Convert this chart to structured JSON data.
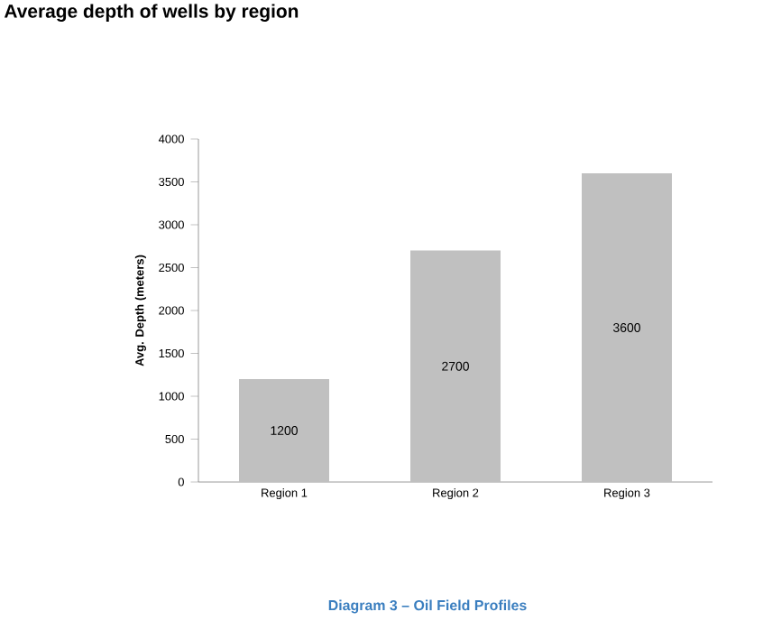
{
  "chart_data": {
    "type": "bar",
    "title": "Average depth of wells by region",
    "ylabel": "Avg. Depth (meters)",
    "categories": [
      "Region 1",
      "Region 2",
      "Region 3"
    ],
    "values": [
      1200,
      2700,
      3600
    ],
    "color": "#c0c0c0",
    "ylim": [
      0,
      4000
    ],
    "yticks": [
      0,
      500,
      1000,
      1500,
      2000,
      2500,
      3000,
      3500,
      4000
    ],
    "data_labels": true,
    "annotations": [
      "Diagram 3 – Oil Field Profiles"
    ]
  }
}
